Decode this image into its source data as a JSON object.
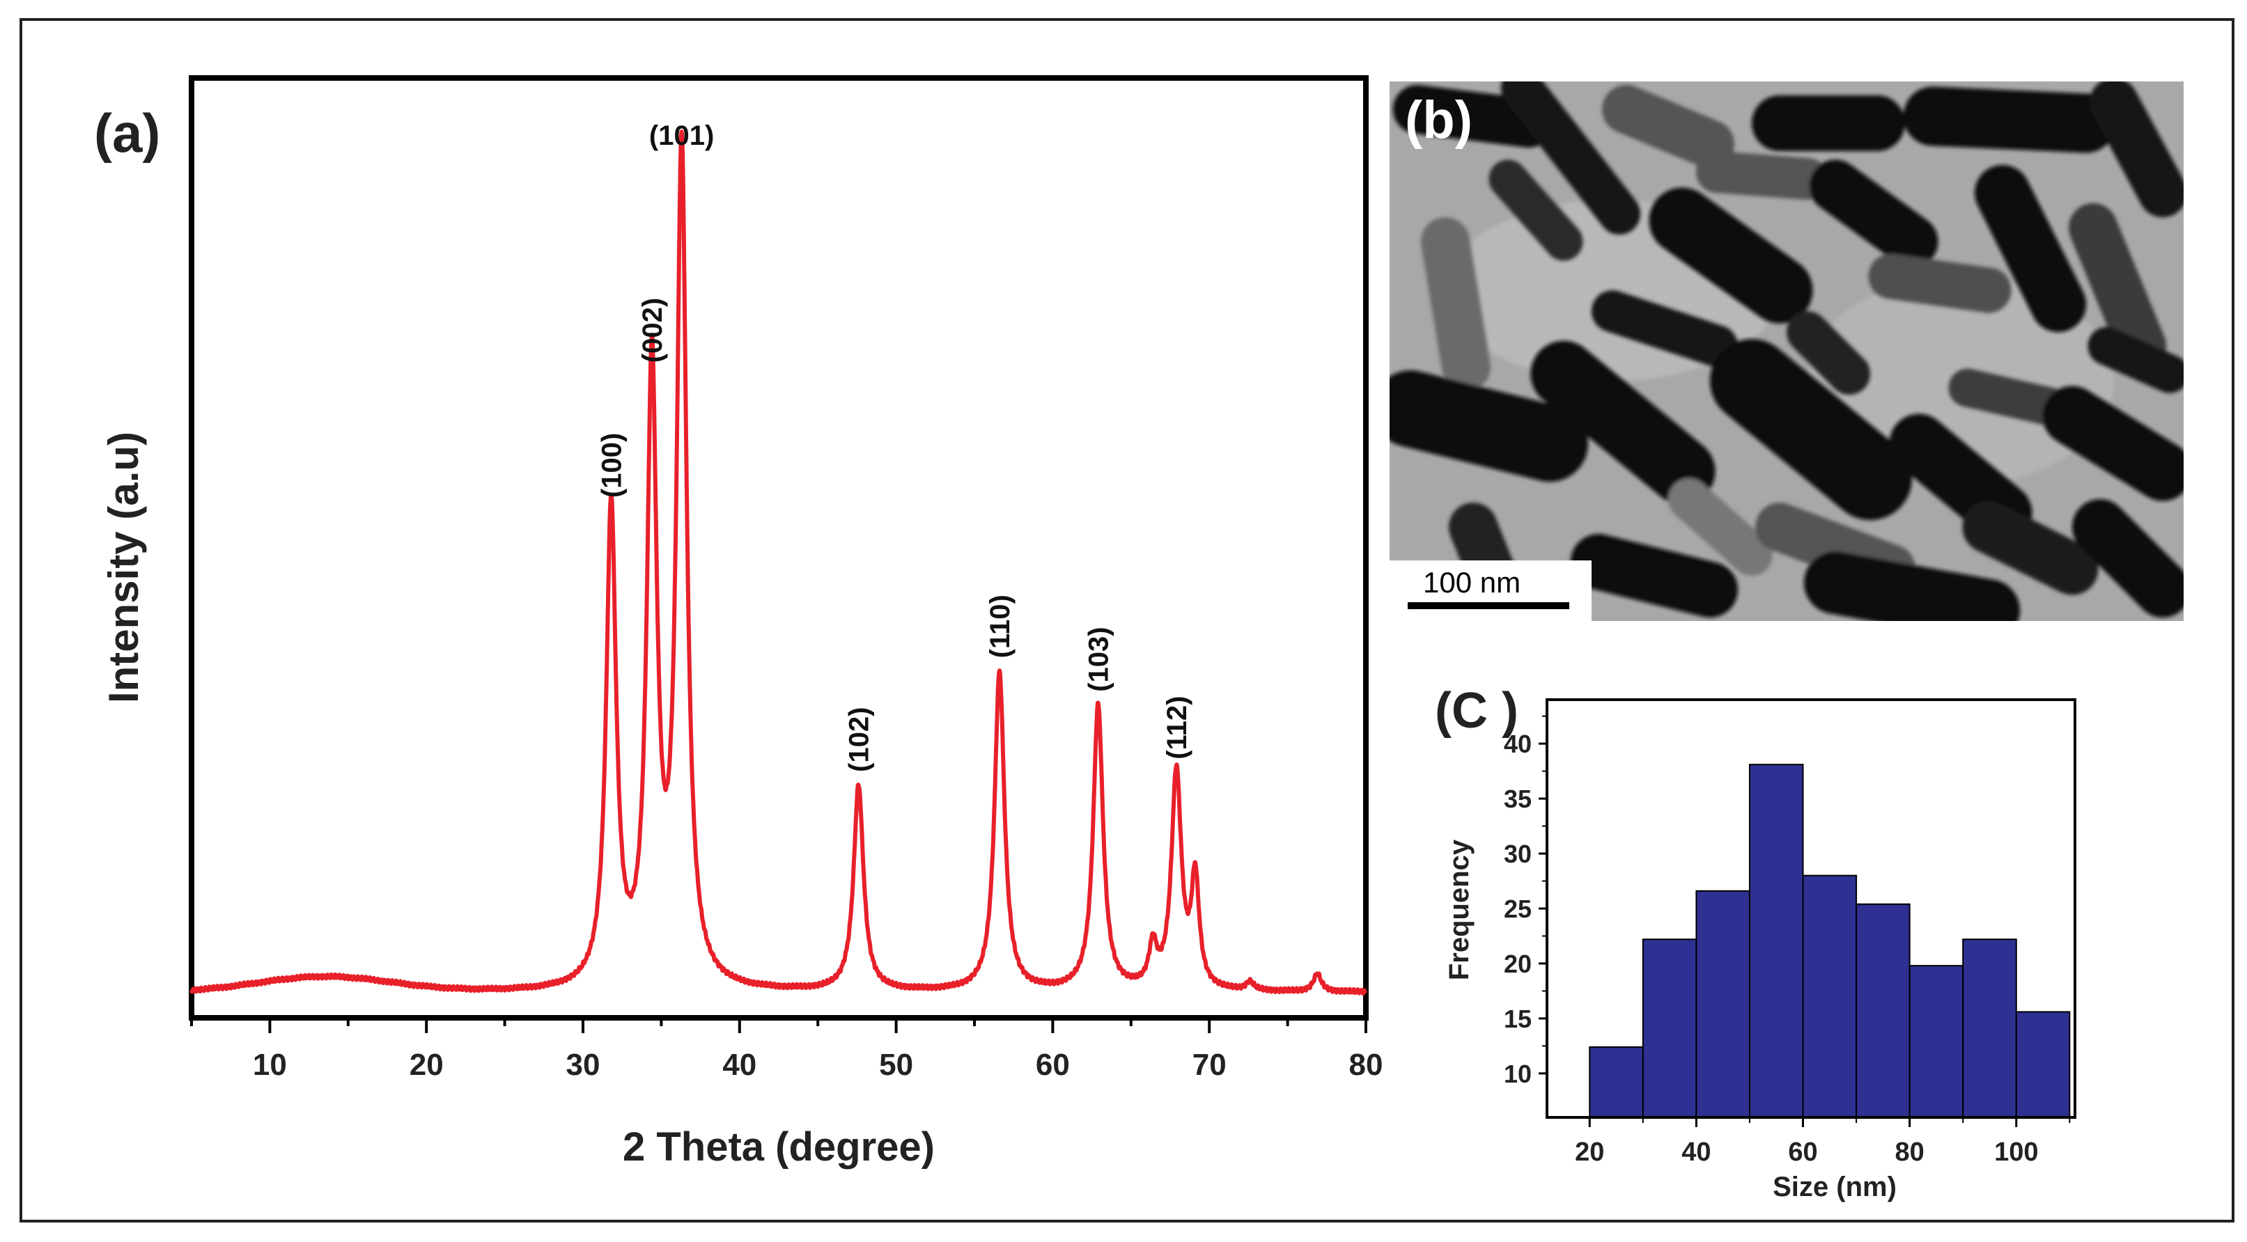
{
  "chart_data": [
    {
      "panel_label": "(a)",
      "type": "line",
      "xlabel": "2 Theta (degree)",
      "ylabel": "Intensity (a.u)",
      "xlim": [
        5,
        80
      ],
      "ylim": [
        0,
        100
      ],
      "xticks": [
        10,
        20,
        30,
        40,
        50,
        60,
        70,
        80
      ],
      "color": "#e8202a",
      "baseline": 1.2,
      "background_humps": [
        {
          "center": 13.5,
          "height": 1.8,
          "width": 6
        }
      ],
      "peaks": [
        {
          "two_theta": 31.8,
          "intensity": 58,
          "label": "(100)"
        },
        {
          "two_theta": 34.4,
          "intensity": 74,
          "label": "(002)"
        },
        {
          "two_theta": 36.3,
          "intensity": 100,
          "label": "(101)"
        },
        {
          "two_theta": 47.6,
          "intensity": 25.5,
          "label": "(102)"
        },
        {
          "two_theta": 56.6,
          "intensity": 39,
          "label": "(110)"
        },
        {
          "two_theta": 62.9,
          "intensity": 35,
          "label": "(103)"
        },
        {
          "two_theta": 66.4,
          "intensity": 6,
          "label": ""
        },
        {
          "two_theta": 67.9,
          "intensity": 27,
          "label": "(112)"
        },
        {
          "two_theta": 69.1,
          "intensity": 14,
          "label": ""
        },
        {
          "two_theta": 72.6,
          "intensity": 2.2,
          "label": ""
        },
        {
          "two_theta": 76.9,
          "intensity": 3.3,
          "label": ""
        }
      ]
    },
    {
      "panel_label": "(C )",
      "type": "bar",
      "xlabel": "Size (nm)",
      "ylabel": "Frequency",
      "xlim": [
        12,
        111
      ],
      "ylim": [
        6,
        44
      ],
      "xticks": [
        20,
        40,
        60,
        80,
        100
      ],
      "yticks": [
        10,
        15,
        20,
        25,
        30,
        35,
        40
      ],
      "color": "#2e3192",
      "bins": [
        {
          "start": 20,
          "end": 30,
          "value": 12.4
        },
        {
          "start": 30,
          "end": 40,
          "value": 22.2
        },
        {
          "start": 40,
          "end": 50,
          "value": 26.6
        },
        {
          "start": 50,
          "end": 60,
          "value": 38.1
        },
        {
          "start": 60,
          "end": 70,
          "value": 28.0
        },
        {
          "start": 70,
          "end": 80,
          "value": 25.4
        },
        {
          "start": 80,
          "end": 90,
          "value": 19.8
        },
        {
          "start": 90,
          "end": 100,
          "value": 22.2
        },
        {
          "start": 100,
          "end": 110,
          "value": 15.6
        }
      ]
    }
  ],
  "tem_image": {
    "panel_label": "(b)",
    "scale_bar_label": "100 nm"
  }
}
